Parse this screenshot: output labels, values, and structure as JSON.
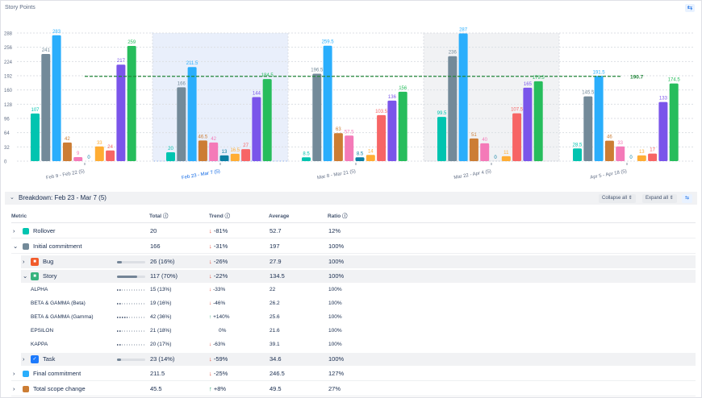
{
  "title": "Story Points",
  "chart_data": {
    "type": "bar",
    "ylim": [
      0,
      288
    ],
    "yticks": [
      0,
      32,
      64,
      96,
      128,
      160,
      192,
      224,
      256,
      288
    ],
    "categories": [
      "Feb 9 - Feb 22 (5)",
      "Feb 23 - Mar 7 (5)",
      "Mar 8 - Mar 21 (5)",
      "Mar 22 - Apr 4 (5)",
      "Apr 5 - Apr 18 (5)"
    ],
    "selected_category": 1,
    "shaded_category": 3,
    "colors": [
      "#00c4b0",
      "#738a99",
      "#2aaefc",
      "#cc7d34",
      "#f47ab8",
      "#0a7fa3",
      "#ffad33",
      "#f76565",
      "#7a55ea",
      "#27bd5c"
    ],
    "series": [
      {
        "values": [
          107,
          20,
          8.5,
          99.5,
          28.5
        ]
      },
      {
        "values": [
          241,
          166,
          196.5,
          236,
          145.5
        ]
      },
      {
        "values": [
          283,
          211.5,
          259.5,
          287,
          191.5
        ]
      },
      {
        "values": [
          42,
          46.5,
          63,
          51,
          46
        ]
      },
      {
        "values": [
          9,
          42,
          57.5,
          40,
          33
        ]
      },
      {
        "values": [
          0,
          13,
          8.5,
          0,
          0
        ]
      },
      {
        "values": [
          33,
          16.5,
          14,
          11,
          13
        ]
      },
      {
        "values": [
          24,
          27,
          103.5,
          107.5,
          17
        ]
      },
      {
        "values": [
          217,
          144,
          136,
          165,
          133
        ]
      },
      {
        "values": [
          259,
          184.5,
          156,
          179.5,
          174.5
        ]
      }
    ],
    "average_line": {
      "value": 190.7,
      "label": "190.7",
      "color": "#22863a"
    }
  },
  "breakdown": {
    "title": "Breakdown: Feb 23 - Mar 7 (5)",
    "collapse_all": "Collapse all",
    "expand_all": "Expand all"
  },
  "table": {
    "headers": {
      "metric": "Metric",
      "total": "Total",
      "trend": "Trend",
      "average": "Average",
      "ratio": "Ratio"
    },
    "rows": [
      {
        "metric": "Rollover",
        "total": "20",
        "trend": "-81%",
        "average": "52.7",
        "ratio": "12%"
      },
      {
        "metric": "Initial commitment",
        "total": "166",
        "trend": "-31%",
        "average": "197",
        "ratio": "100%"
      },
      {
        "metric": "Bug",
        "total": "26 (16%)",
        "trend": "-26%",
        "average": "27.9",
        "ratio": "100%"
      },
      {
        "metric": "Story",
        "total": "117 (70%)",
        "trend": "-22%",
        "average": "134.5",
        "ratio": "100%"
      },
      {
        "metric": "ALPHA",
        "total": "15 (13%)",
        "trend": "-33%",
        "average": "22",
        "ratio": "100%"
      },
      {
        "metric": "BETA & GAMMA (Beta)",
        "total": "19 (16%)",
        "trend": "-46%",
        "average": "26.2",
        "ratio": "100%"
      },
      {
        "metric": "BETA & GAMMA (Gamma)",
        "total": "42 (36%)",
        "trend": "+140%",
        "average": "25.6",
        "ratio": "100%"
      },
      {
        "metric": "EPSILON",
        "total": "21 (18%)",
        "trend": "0%",
        "average": "21.6",
        "ratio": "100%"
      },
      {
        "metric": "KAPPA",
        "total": "20 (17%)",
        "trend": "-63%",
        "average": "39.1",
        "ratio": "100%"
      },
      {
        "metric": "Task",
        "total": "23 (14%)",
        "trend": "-59%",
        "average": "34.6",
        "ratio": "100%"
      },
      {
        "metric": "Final commitment",
        "total": "211.5",
        "trend": "-25%",
        "average": "246.5",
        "ratio": "127%"
      },
      {
        "metric": "Total scope change",
        "total": "45.5",
        "trend": "+8%",
        "average": "49.5",
        "ratio": "27%"
      }
    ]
  }
}
